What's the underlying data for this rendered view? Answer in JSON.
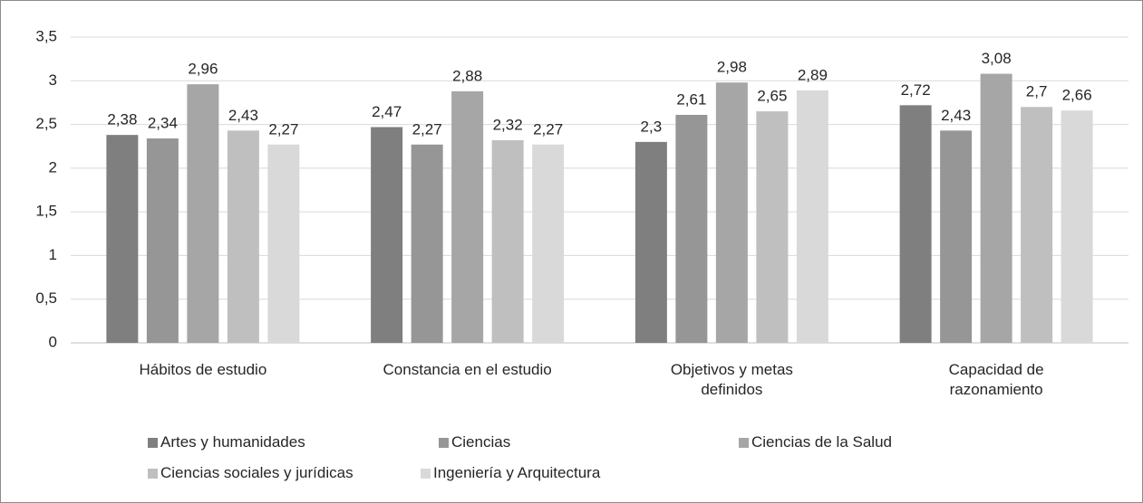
{
  "chart_data": {
    "type": "bar",
    "categories": [
      "Hábitos de estudio",
      "Constancia en el estudio",
      "Objetivos y metas definidos",
      "Capacidad de razonamiento"
    ],
    "series": [
      {
        "name": "Artes y humanidades",
        "color": "#7f7f7f",
        "values": [
          2.38,
          2.47,
          2.3,
          2.72
        ],
        "value_labels": [
          "2,38",
          "2,47",
          "2,3",
          "2,72"
        ]
      },
      {
        "name": "Ciencias",
        "color": "#969696",
        "values": [
          2.34,
          2.27,
          2.61,
          2.43
        ],
        "value_labels": [
          "2,34",
          "2,27",
          "2,61",
          "2,43"
        ]
      },
      {
        "name": "Ciencias de la Salud",
        "color": "#a6a6a6",
        "values": [
          2.96,
          2.88,
          2.98,
          3.08
        ],
        "value_labels": [
          "2,96",
          "2,88",
          "2,98",
          "3,08"
        ]
      },
      {
        "name": "Ciencias sociales y jurídicas",
        "color": "#bfbfbf",
        "values": [
          2.43,
          2.32,
          2.65,
          2.7
        ],
        "value_labels": [
          "2,43",
          "2,32",
          "2,65",
          "2,7"
        ]
      },
      {
        "name": "Ingeniería y Arquitectura",
        "color": "#d9d9d9",
        "values": [
          2.27,
          2.27,
          2.89,
          2.66
        ],
        "value_labels": [
          "2,27",
          "2,27",
          "2,89",
          "2,66"
        ]
      }
    ],
    "ylim": [
      0,
      3.5
    ],
    "yticks": [
      0,
      {
        "value": 0.5,
        "label": "0,5"
      },
      1,
      {
        "value": 1.5,
        "label": "1,5"
      },
      2,
      {
        "value": 2.5,
        "label": "2,5"
      },
      3,
      {
        "value": 3.5,
        "label": "3,5"
      }
    ],
    "grid": true,
    "legend": "bottom"
  }
}
